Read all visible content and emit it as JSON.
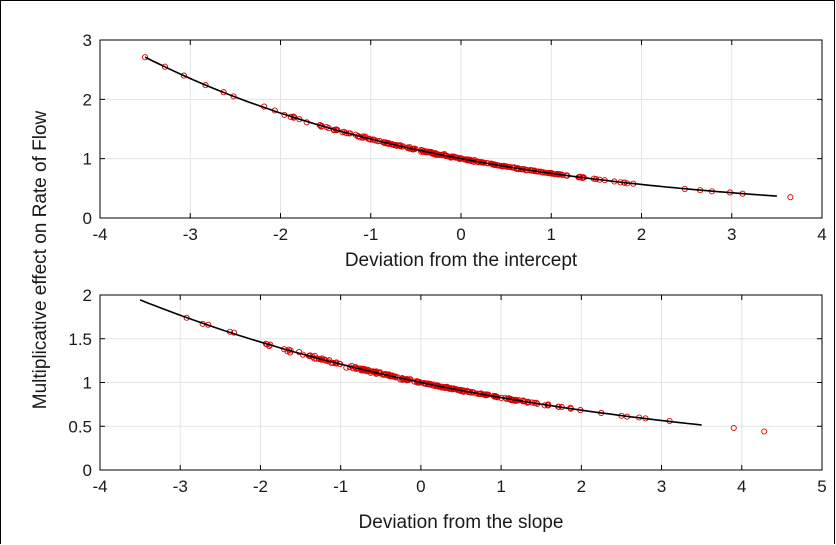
{
  "colors": {
    "marker": "#e00000",
    "fit_line": "#000000",
    "grid": "#e3e3e3",
    "axes": "#000000"
  },
  "figure": {
    "ylabel": "Multiplicative effect on Rate of Flow"
  },
  "chart_data": [
    {
      "type": "scatter",
      "title": "",
      "xlabel": "Deviation from the intercept",
      "ylabel": "",
      "xlim": [
        -4,
        4
      ],
      "ylim": [
        0,
        3
      ],
      "xticks": [
        "-4",
        "-3",
        "-2",
        "-1",
        "0",
        "1",
        "2",
        "3",
        "4"
      ],
      "yticks": [
        "0",
        "1",
        "2",
        "3"
      ],
      "grid": true,
      "fit_line": {
        "x_start": -3.5,
        "x_end": 3.5,
        "model": "exp(-0.285*x)"
      },
      "labeled_points": [
        {
          "x": -3.5,
          "y": 2.71
        },
        {
          "x": -3.28,
          "y": 2.55
        },
        {
          "x": -3.07,
          "y": 2.4
        },
        {
          "x": -2.83,
          "y": 2.24
        },
        {
          "x": -2.63,
          "y": 2.12
        },
        {
          "x": -2.52,
          "y": 2.05
        },
        {
          "x": 2.48,
          "y": 0.49
        },
        {
          "x": 2.65,
          "y": 0.47
        },
        {
          "x": 2.78,
          "y": 0.45
        },
        {
          "x": 2.98,
          "y": 0.43
        },
        {
          "x": 3.12,
          "y": 0.41
        },
        {
          "x": 3.65,
          "y": 0.35
        }
      ],
      "dense_range": [
        -2.45,
        2.3
      ],
      "dense_count": 260
    },
    {
      "type": "scatter",
      "title": "",
      "xlabel": "Deviation from the slope",
      "ylabel": "",
      "xlim": [
        -4,
        5
      ],
      "ylim": [
        0,
        2
      ],
      "xticks": [
        "-4",
        "-3",
        "-2",
        "-1",
        "0",
        "1",
        "2",
        "3",
        "4",
        "5"
      ],
      "yticks": [
        "0",
        "0.5",
        "1",
        "1.5",
        "2"
      ],
      "grid": true,
      "fit_line": {
        "x_start": -3.5,
        "x_end": 3.5,
        "model": "exp(-0.19*x)"
      },
      "labeled_points": [
        {
          "x": -2.92,
          "y": 1.74
        },
        {
          "x": -2.72,
          "y": 1.67
        },
        {
          "x": -2.65,
          "y": 1.66
        },
        {
          "x": -2.38,
          "y": 1.58
        },
        {
          "x": -2.33,
          "y": 1.57
        },
        {
          "x": 2.5,
          "y": 0.62
        },
        {
          "x": 2.57,
          "y": 0.61
        },
        {
          "x": 2.72,
          "y": 0.6
        },
        {
          "x": 2.8,
          "y": 0.59
        },
        {
          "x": 3.1,
          "y": 0.56
        },
        {
          "x": 3.9,
          "y": 0.48
        },
        {
          "x": 4.28,
          "y": 0.44
        }
      ],
      "dense_range": [
        -2.15,
        2.3
      ],
      "dense_count": 240
    }
  ]
}
